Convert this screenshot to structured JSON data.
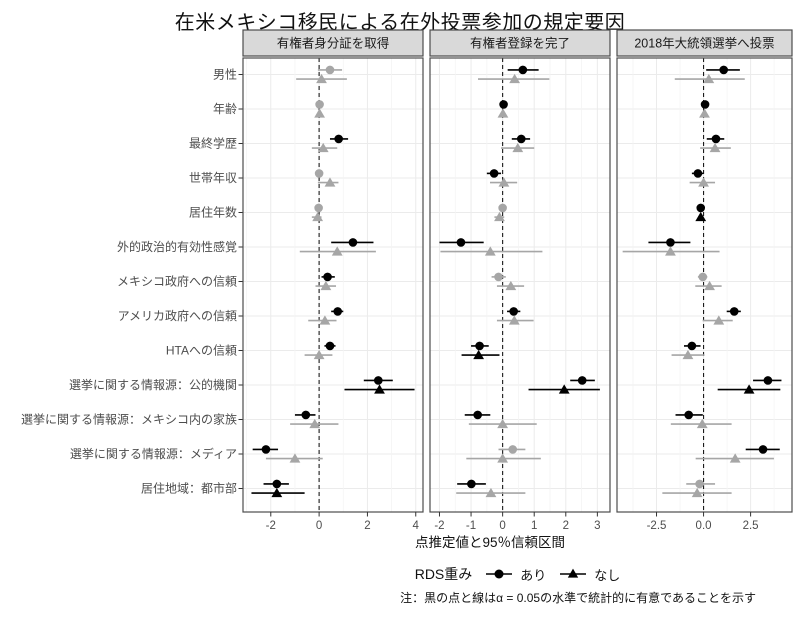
{
  "title": "在米メキシコ移民による在外投票参加の規定要因",
  "x_axis_title": "点推定値と95％信頼区間",
  "note": "注：黒の点と線はα = 0.05の水準で統計的に有意であることを示す",
  "legend": {
    "title": "RDS重み",
    "items": [
      {
        "label": "あり",
        "marker": "circle"
      },
      {
        "label": "なし",
        "marker": "triangle"
      }
    ]
  },
  "colors": {
    "significant": "#000000",
    "nonsignificant": "#A6A6A6",
    "strip_bg": "#D9D9D9",
    "grid_major": "#EBEBEB",
    "grid_minor": "#F4F4F4",
    "panel_border": "#4D4D4D",
    "tick": "#333333",
    "axis_text": "#4D4D4D",
    "zero_line": "#1A1A1A"
  },
  "chart_data": {
    "type": "scatter",
    "subtype": "forest-plot-faceted",
    "grid": true,
    "legend_position": "bottom",
    "xlabel": "点推定値と95％信頼区間",
    "point_format": [
      "estimate",
      "ci_low",
      "ci_high",
      "significant"
    ],
    "categories": [
      "男性",
      "年齢",
      "最終学歴",
      "世帯年収",
      "居住年数",
      "外的政治的有効性感覚",
      "メキシコ政府への信頼",
      "アメリカ政府への信頼",
      "HTAへの信頼",
      "選挙に関する情報源：公的機関",
      "選挙に関する情報源：メキシコ内の家族",
      "選挙に関する情報源：メディア",
      "居住地域：都市部"
    ],
    "panels": [
      {
        "label": "有権者身分証を取得",
        "xlim": [
          -3.15,
          4.3
        ],
        "ticks": [
          {
            "v": -2,
            "label": "-2"
          },
          {
            "v": 0,
            "label": "0"
          },
          {
            "v": 2,
            "label": "2"
          },
          {
            "v": 4,
            "label": "4"
          }
        ],
        "series": [
          {
            "name": "あり",
            "marker": "circle",
            "points": [
              [
                0.45,
                -0.05,
                0.95,
                0
              ],
              [
                0.02,
                -0.08,
                0.12,
                0
              ],
              [
                0.81,
                0.45,
                1.2,
                1
              ],
              [
                0.0,
                -0.1,
                0.1,
                0
              ],
              [
                -0.02,
                -0.12,
                0.05,
                0
              ],
              [
                1.4,
                0.5,
                2.25,
                1
              ],
              [
                0.35,
                0.1,
                0.65,
                1
              ],
              [
                0.77,
                0.5,
                1.0,
                1
              ],
              [
                0.45,
                0.22,
                0.68,
                1
              ],
              [
                2.45,
                1.85,
                3.05,
                1
              ],
              [
                -0.55,
                -1.0,
                -0.15,
                1
              ],
              [
                -2.2,
                -2.75,
                -1.7,
                1
              ],
              [
                -1.75,
                -2.3,
                -1.25,
                1
              ]
            ]
          },
          {
            "name": "なし",
            "marker": "triangle",
            "points": [
              [
                0.1,
                -0.95,
                1.15,
                0
              ],
              [
                0.02,
                -0.05,
                0.1,
                0
              ],
              [
                0.17,
                -0.3,
                0.75,
                0
              ],
              [
                0.45,
                -0.05,
                0.8,
                0
              ],
              [
                -0.06,
                -0.3,
                0.1,
                0
              ],
              [
                0.75,
                -0.8,
                2.35,
                0
              ],
              [
                0.28,
                -0.15,
                0.7,
                0
              ],
              [
                0.24,
                -0.45,
                0.72,
                0
              ],
              [
                0.0,
                -0.6,
                0.55,
                0
              ],
              [
                2.5,
                1.05,
                3.95,
                1
              ],
              [
                -0.18,
                -1.2,
                0.8,
                0
              ],
              [
                -1.0,
                -2.2,
                0.15,
                0
              ],
              [
                -1.75,
                -2.8,
                -0.6,
                1
              ]
            ]
          }
        ]
      },
      {
        "label": "有権者登録を完了",
        "xlim": [
          -2.3,
          3.4
        ],
        "ticks": [
          {
            "v": -2,
            "label": "-2"
          },
          {
            "v": -1,
            "label": "-1"
          },
          {
            "v": 0,
            "label": "0"
          },
          {
            "v": 1,
            "label": "1"
          },
          {
            "v": 2,
            "label": "2"
          },
          {
            "v": 3,
            "label": "3"
          }
        ],
        "series": [
          {
            "name": "あり",
            "marker": "circle",
            "points": [
              [
                0.64,
                0.16,
                1.14,
                1
              ],
              [
                0.03,
                0.01,
                0.06,
                1
              ],
              [
                0.59,
                0.29,
                0.87,
                1
              ],
              [
                -0.27,
                -0.5,
                -0.05,
                1
              ],
              [
                0.0,
                -0.05,
                0.05,
                0
              ],
              [
                -1.32,
                -2.0,
                -0.6,
                1
              ],
              [
                -0.13,
                -0.35,
                0.1,
                0
              ],
              [
                0.35,
                0.14,
                0.56,
                1
              ],
              [
                -0.73,
                -1.0,
                -0.44,
                1
              ],
              [
                2.52,
                2.14,
                2.92,
                1
              ],
              [
                -0.79,
                -1.2,
                -0.39,
                1
              ],
              [
                0.32,
                -0.13,
                0.72,
                0
              ],
              [
                -0.99,
                -1.44,
                -0.53,
                1
              ]
            ]
          },
          {
            "name": "なし",
            "marker": "triangle",
            "points": [
              [
                0.38,
                -0.78,
                1.48,
                0
              ],
              [
                0.01,
                -0.02,
                0.05,
                0
              ],
              [
                0.48,
                -0.05,
                1.0,
                0
              ],
              [
                0.04,
                -0.4,
                0.46,
                0
              ],
              [
                -0.1,
                -0.26,
                0.05,
                0
              ],
              [
                -0.39,
                -1.97,
                1.26,
                0
              ],
              [
                0.26,
                -0.18,
                0.68,
                0
              ],
              [
                0.37,
                -0.18,
                0.98,
                0
              ],
              [
                -0.76,
                -1.3,
                -0.1,
                1
              ],
              [
                1.95,
                0.82,
                3.08,
                1
              ],
              [
                0.0,
                -1.07,
                1.08,
                0
              ],
              [
                0.0,
                -1.15,
                1.21,
                0
              ],
              [
                -0.37,
                -1.47,
                0.72,
                0
              ]
            ]
          }
        ]
      },
      {
        "label": "2018年大統領選挙へ投票",
        "xlim": [
          -4.6,
          4.7
        ],
        "ticks": [
          {
            "v": -2.5,
            "label": "-2.5"
          },
          {
            "v": 0,
            "label": "0.0"
          },
          {
            "v": 2.5,
            "label": "2.5"
          }
        ],
        "series": [
          {
            "name": "あり",
            "marker": "circle",
            "points": [
              [
                1.07,
                0.14,
                1.93,
                1
              ],
              [
                0.08,
                0.02,
                0.14,
                1
              ],
              [
                0.66,
                0.17,
                1.1,
                1
              ],
              [
                -0.3,
                -0.62,
                -0.02,
                1
              ],
              [
                -0.15,
                -0.26,
                -0.04,
                1
              ],
              [
                -1.76,
                -2.93,
                -0.7,
                1
              ],
              [
                -0.04,
                -0.3,
                0.2,
                0
              ],
              [
                1.63,
                1.23,
                1.98,
                1
              ],
              [
                -0.62,
                -1.04,
                -0.16,
                1
              ],
              [
                3.42,
                2.63,
                4.14,
                1
              ],
              [
                -0.79,
                -1.49,
                -0.04,
                1
              ],
              [
                3.16,
                2.24,
                4.05,
                1
              ],
              [
                -0.21,
                -0.92,
                0.61,
                0
              ]
            ]
          },
          {
            "name": "なし",
            "marker": "triangle",
            "points": [
              [
                0.28,
                -1.53,
                2.19,
                0
              ],
              [
                0.05,
                -0.02,
                0.12,
                0
              ],
              [
                0.61,
                -0.18,
                1.45,
                0
              ],
              [
                0.0,
                -0.74,
                0.61,
                0
              ],
              [
                -0.15,
                -0.28,
                -0.02,
                1
              ],
              [
                -1.76,
                -4.3,
                0.85,
                0
              ],
              [
                0.32,
                -0.44,
                0.96,
                0
              ],
              [
                0.81,
                -0.05,
                1.55,
                0
              ],
              [
                -0.83,
                -1.7,
                0.05,
                0
              ],
              [
                2.42,
                0.75,
                4.08,
                1
              ],
              [
                -0.07,
                -1.74,
                1.49,
                0
              ],
              [
                1.68,
                -0.42,
                3.74,
                0
              ],
              [
                -0.34,
                -2.19,
                1.49,
                0
              ]
            ]
          }
        ]
      }
    ]
  }
}
